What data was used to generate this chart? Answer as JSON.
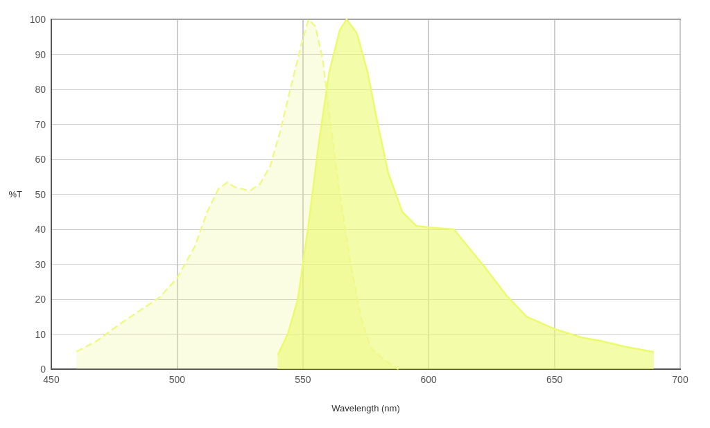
{
  "chart_data": {
    "type": "area",
    "xlabel": "Wavelength (nm)",
    "ylabel": "%T",
    "xlim": [
      450,
      700
    ],
    "xticks": [
      450,
      500,
      550,
      600,
      650,
      700
    ],
    "ylim": [
      0,
      100
    ],
    "yticks": [
      0,
      10,
      20,
      30,
      40,
      50,
      60,
      70,
      80,
      90,
      100
    ],
    "grid": true,
    "marker": "none",
    "series": [
      {
        "color": "#eef98a",
        "line_style": "dashed",
        "x": [
          460,
          468,
          476.5,
          484.7,
          493,
          500,
          507,
          512,
          516.4,
          520,
          523,
          529,
          533,
          537,
          541,
          545,
          549.5,
          552.3,
          555,
          558,
          561,
          564.7,
          569,
          573,
          577,
          582.6,
          588
        ],
        "values": [
          5,
          8,
          12.5,
          16.5,
          20.5,
          26,
          35,
          45,
          51.5,
          53.4,
          52,
          51,
          53,
          58,
          68,
          80,
          93,
          100,
          98,
          88,
          70,
          50,
          30,
          15,
          6,
          2.5,
          0
        ]
      },
      {
        "color": "#ebfa6e",
        "line_style": "solid",
        "x": [
          540,
          544,
          548,
          552,
          556.4,
          560.5,
          564.7,
          567.4,
          571.5,
          575.7,
          579.8,
          584,
          589.5,
          595,
          600.5,
          610,
          615.7,
          622.5,
          631,
          639,
          650,
          661,
          669,
          677.7,
          688.7,
          689.5
        ],
        "values": [
          4,
          10,
          20,
          40,
          65,
          85,
          97,
          100,
          96,
          85,
          70,
          56,
          45,
          41,
          40.5,
          40,
          35,
          29,
          21,
          15,
          11.5,
          9,
          8,
          6.5,
          5,
          5
        ]
      }
    ]
  }
}
